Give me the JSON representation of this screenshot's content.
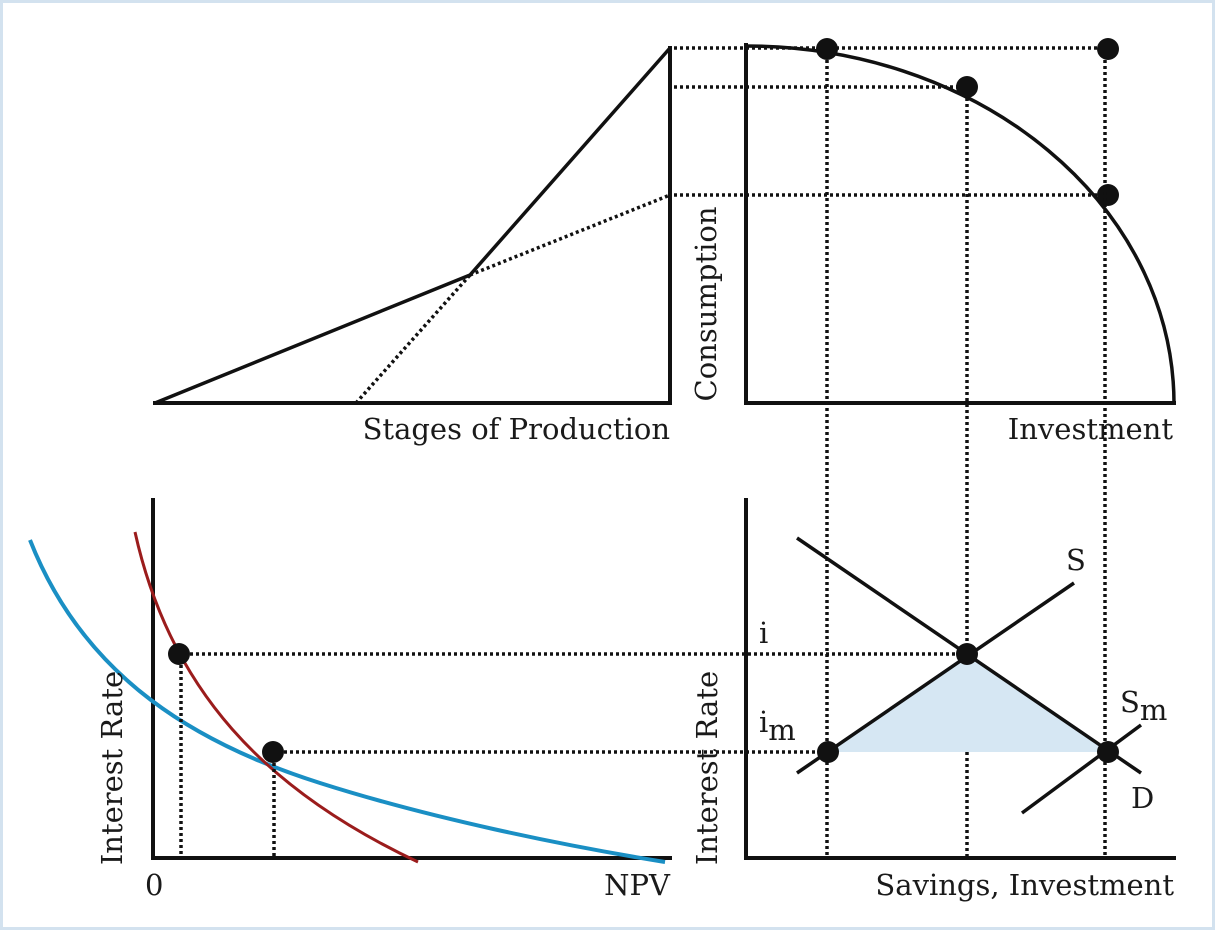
{
  "diagram": {
    "top_left": {
      "xlabel": "Stages of Production"
    },
    "top_right": {
      "ylabel": "Consumption",
      "xlabel": "Investment"
    },
    "bottom_left": {
      "ylabel": "Interest Rate",
      "origin_label": "0",
      "xlabel": "NPV"
    },
    "bottom_right": {
      "ylabel": "Interest Rate",
      "xlabel": "Savings, Investment",
      "supply_label": "S",
      "supply_m_label": "S",
      "supply_m_sub": "m",
      "demand_label": "D",
      "rate_label": "i",
      "rate_m_label": "i",
      "rate_m_sub": "m"
    },
    "colors": {
      "curve_blue": "#1a8fc4",
      "curve_red": "#9b1c1c",
      "shade": "#d6e7f3",
      "frame": "#d3e2ef"
    }
  }
}
